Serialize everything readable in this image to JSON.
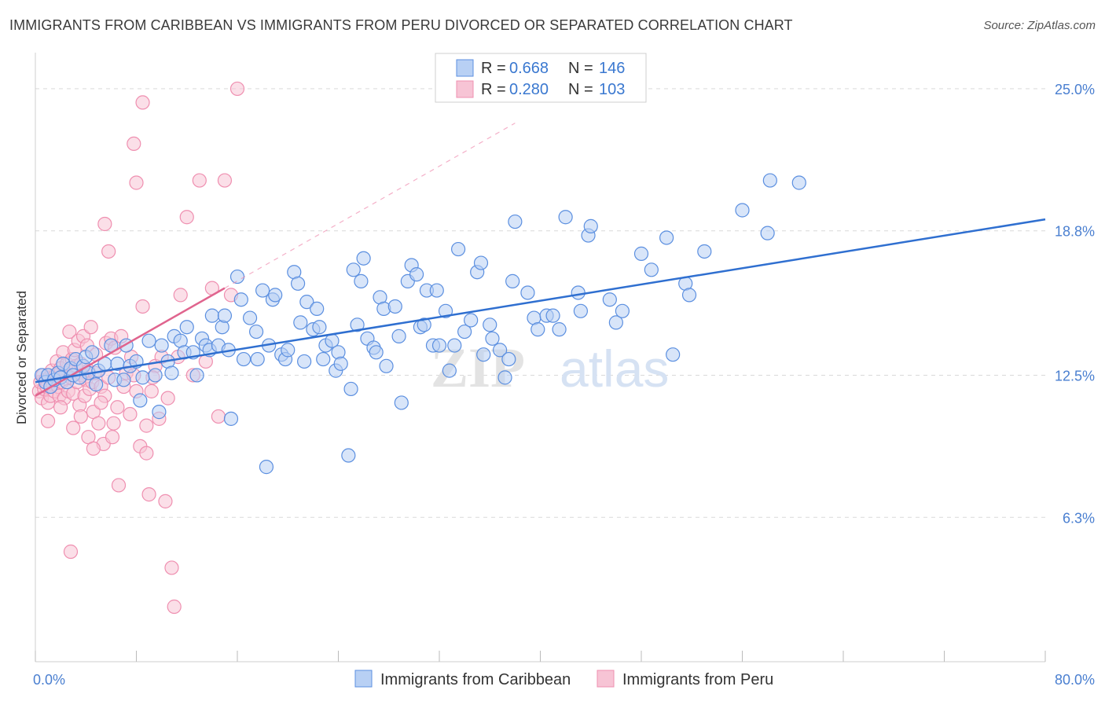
{
  "title": "IMMIGRANTS FROM CARIBBEAN VS IMMIGRANTS FROM PERU DIVORCED OR SEPARATED CORRELATION CHART",
  "source": "Source: ZipAtlas.com",
  "watermark": {
    "zip": "ZIP",
    "atlas": "atlas"
  },
  "colors": {
    "blue": "#5b8fe0",
    "blue_line": "#2f6fd0",
    "blue_fill": "#b8d0f4",
    "pink": "#ef8fb0",
    "pink_line": "#e0648e",
    "pink_fill": "#f7c4d5",
    "grid": "#d9d9d9",
    "tick_text": "#4a7fd0"
  },
  "legend_top": {
    "rows": [
      {
        "r_label": "R = ",
        "r_value": "0.668",
        "n_label": "N = ",
        "n_value": "146"
      },
      {
        "r_label": "R = ",
        "r_value": "0.280",
        "n_label": "N = ",
        "n_value": "103"
      }
    ]
  },
  "legend_bottom": [
    "Immigrants from Caribbean",
    "Immigrants from Peru"
  ],
  "chart_data": {
    "type": "scatter",
    "title": "IMMIGRANTS FROM CARIBBEAN VS IMMIGRANTS FROM PERU DIVORCED OR SEPARATED CORRELATION CHART",
    "xlabel": "",
    "ylabel": "Divorced or Separated",
    "xlim": [
      0,
      80
    ],
    "ylim": [
      0,
      26.3
    ],
    "x_tick_labels": [
      {
        "value": 0,
        "label": "0.0%"
      },
      {
        "value": 80,
        "label": "80.0%"
      }
    ],
    "y_tick_labels": [
      {
        "value": 25.0,
        "label": "25.0%"
      },
      {
        "value": 18.8,
        "label": "18.8%"
      },
      {
        "value": 12.5,
        "label": "12.5%"
      },
      {
        "value": 6.3,
        "label": "6.3%"
      }
    ],
    "grid": true,
    "legend_position": "top-center",
    "series": [
      {
        "name": "Immigrants from Caribbean",
        "R": 0.668,
        "N": 146,
        "trend": {
          "x": [
            0,
            80
          ],
          "y": [
            12.2,
            19.3
          ]
        },
        "points": [
          [
            0.5,
            12.5
          ],
          [
            0.8,
            12.2
          ],
          [
            1.0,
            12.5
          ],
          [
            1.2,
            12.0
          ],
          [
            1.5,
            12.3
          ],
          [
            1.8,
            12.6
          ],
          [
            2.0,
            12.4
          ],
          [
            2.2,
            13.0
          ],
          [
            2.5,
            12.2
          ],
          [
            2.8,
            12.8
          ],
          [
            3.0,
            12.5
          ],
          [
            3.2,
            13.2
          ],
          [
            3.5,
            12.4
          ],
          [
            3.8,
            12.9
          ],
          [
            4.0,
            13.3
          ],
          [
            4.2,
            12.6
          ],
          [
            4.5,
            13.5
          ],
          [
            4.8,
            12.1
          ],
          [
            5.0,
            12.7
          ],
          [
            5.5,
            13.0
          ],
          [
            6.0,
            13.8
          ],
          [
            6.3,
            12.3
          ],
          [
            6.5,
            13.0
          ],
          [
            7.0,
            12.3
          ],
          [
            7.2,
            13.8
          ],
          [
            7.5,
            12.9
          ],
          [
            8.0,
            13.1
          ],
          [
            8.3,
            11.4
          ],
          [
            8.5,
            12.4
          ],
          [
            9.0,
            14.0
          ],
          [
            9.5,
            12.5
          ],
          [
            9.8,
            10.9
          ],
          [
            10.0,
            13.8
          ],
          [
            10.5,
            13.1
          ],
          [
            10.8,
            12.6
          ],
          [
            11.0,
            14.2
          ],
          [
            11.5,
            14.0
          ],
          [
            11.8,
            13.5
          ],
          [
            12.0,
            14.6
          ],
          [
            12.5,
            13.5
          ],
          [
            12.8,
            12.5
          ],
          [
            13.2,
            14.1
          ],
          [
            13.5,
            13.8
          ],
          [
            13.8,
            13.6
          ],
          [
            14.0,
            15.1
          ],
          [
            14.5,
            13.8
          ],
          [
            14.8,
            14.6
          ],
          [
            15.0,
            15.1
          ],
          [
            15.3,
            13.6
          ],
          [
            15.5,
            10.6
          ],
          [
            16.0,
            16.8
          ],
          [
            16.3,
            15.8
          ],
          [
            16.5,
            13.2
          ],
          [
            17.0,
            15.0
          ],
          [
            17.5,
            14.4
          ],
          [
            17.6,
            13.2
          ],
          [
            18.0,
            16.2
          ],
          [
            18.3,
            8.5
          ],
          [
            18.5,
            13.8
          ],
          [
            18.8,
            15.8
          ],
          [
            19.0,
            16.0
          ],
          [
            19.5,
            13.4
          ],
          [
            19.8,
            13.2
          ],
          [
            20.0,
            13.6
          ],
          [
            20.5,
            17.0
          ],
          [
            20.8,
            16.5
          ],
          [
            21.0,
            14.8
          ],
          [
            21.3,
            13.1
          ],
          [
            21.5,
            15.7
          ],
          [
            22.0,
            14.5
          ],
          [
            22.3,
            15.4
          ],
          [
            22.5,
            14.6
          ],
          [
            22.8,
            13.2
          ],
          [
            23.0,
            13.8
          ],
          [
            23.5,
            14.0
          ],
          [
            23.8,
            12.7
          ],
          [
            24.0,
            13.5
          ],
          [
            24.2,
            13.0
          ],
          [
            24.8,
            9.0
          ],
          [
            25.0,
            11.9
          ],
          [
            25.2,
            17.1
          ],
          [
            25.5,
            14.7
          ],
          [
            25.8,
            16.6
          ],
          [
            26.0,
            17.6
          ],
          [
            26.3,
            14.1
          ],
          [
            26.8,
            13.7
          ],
          [
            27.0,
            13.5
          ],
          [
            27.3,
            15.9
          ],
          [
            27.6,
            15.4
          ],
          [
            27.8,
            12.9
          ],
          [
            28.5,
            15.5
          ],
          [
            28.8,
            14.2
          ],
          [
            29.0,
            11.3
          ],
          [
            29.5,
            16.6
          ],
          [
            29.8,
            17.3
          ],
          [
            30.2,
            16.9
          ],
          [
            30.5,
            14.6
          ],
          [
            30.8,
            14.7
          ],
          [
            31.0,
            16.2
          ],
          [
            31.5,
            13.8
          ],
          [
            31.8,
            16.2
          ],
          [
            32.0,
            13.8
          ],
          [
            32.5,
            15.3
          ],
          [
            32.8,
            12.7
          ],
          [
            33.2,
            13.8
          ],
          [
            33.5,
            18.0
          ],
          [
            34.0,
            14.4
          ],
          [
            34.5,
            14.9
          ],
          [
            35.0,
            17.0
          ],
          [
            35.3,
            17.4
          ],
          [
            35.5,
            13.4
          ],
          [
            36.0,
            14.7
          ],
          [
            36.2,
            14.1
          ],
          [
            36.8,
            13.6
          ],
          [
            37.2,
            12.4
          ],
          [
            37.5,
            13.2
          ],
          [
            37.8,
            16.6
          ],
          [
            38.0,
            19.2
          ],
          [
            39.0,
            16.1
          ],
          [
            39.5,
            15.0
          ],
          [
            39.8,
            14.5
          ],
          [
            40.5,
            15.1
          ],
          [
            41.0,
            15.1
          ],
          [
            41.5,
            14.5
          ],
          [
            42.0,
            19.4
          ],
          [
            43.0,
            16.1
          ],
          [
            43.2,
            15.3
          ],
          [
            43.8,
            18.6
          ],
          [
            44.0,
            19.0
          ],
          [
            45.5,
            15.8
          ],
          [
            46.0,
            14.8
          ],
          [
            46.5,
            15.3
          ],
          [
            48.0,
            17.8
          ],
          [
            48.8,
            17.1
          ],
          [
            50.0,
            18.5
          ],
          [
            50.5,
            13.4
          ],
          [
            51.5,
            16.5
          ],
          [
            51.8,
            16.0
          ],
          [
            53.0,
            17.9
          ],
          [
            56.0,
            19.7
          ],
          [
            58.0,
            18.7
          ],
          [
            58.2,
            21.0
          ],
          [
            60.5,
            20.9
          ]
        ]
      },
      {
        "name": "Immigrants from Peru",
        "R": 0.28,
        "N": 103,
        "trend": {
          "x": [
            0,
            15
          ],
          "y": [
            11.6,
            16.3
          ]
        },
        "trend_extension": {
          "x": [
            15,
            38
          ],
          "y": [
            16.3,
            23.5
          ]
        },
        "points": [
          [
            0.3,
            11.8
          ],
          [
            0.4,
            12.2
          ],
          [
            0.5,
            11.5
          ],
          [
            0.6,
            12.5
          ],
          [
            0.7,
            11.9
          ],
          [
            0.8,
            12.3
          ],
          [
            0.9,
            12.0
          ],
          [
            1.0,
            11.3
          ],
          [
            1.1,
            12.4
          ],
          [
            1.2,
            11.6
          ],
          [
            1.3,
            12.7
          ],
          [
            1.4,
            12.1
          ],
          [
            1.5,
            11.8
          ],
          [
            1.6,
            12.5
          ],
          [
            1.7,
            13.1
          ],
          [
            1.8,
            12.0
          ],
          [
            1.9,
            11.6
          ],
          [
            2.0,
            12.8
          ],
          [
            2.1,
            12.2
          ],
          [
            2.2,
            13.5
          ],
          [
            2.3,
            11.5
          ],
          [
            2.4,
            12.6
          ],
          [
            2.5,
            13.0
          ],
          [
            2.6,
            11.8
          ],
          [
            2.7,
            14.4
          ],
          [
            2.8,
            12.4
          ],
          [
            2.9,
            13.2
          ],
          [
            3.0,
            11.7
          ],
          [
            3.1,
            13.6
          ],
          [
            3.2,
            12.9
          ],
          [
            3.3,
            12.2
          ],
          [
            3.4,
            14.0
          ],
          [
            3.5,
            11.2
          ],
          [
            3.6,
            13.0
          ],
          [
            3.7,
            12.5
          ],
          [
            3.8,
            14.2
          ],
          [
            3.9,
            11.6
          ],
          [
            4.0,
            12.3
          ],
          [
            4.1,
            13.8
          ],
          [
            4.2,
            12.7
          ],
          [
            4.3,
            11.9
          ],
          [
            4.4,
            14.6
          ],
          [
            4.5,
            12.2
          ],
          [
            4.6,
            10.9
          ],
          [
            4.7,
            12.6
          ],
          [
            4.8,
            13.4
          ],
          [
            5.0,
            10.4
          ],
          [
            5.2,
            12.0
          ],
          [
            5.4,
            9.5
          ],
          [
            5.5,
            11.6
          ],
          [
            5.6,
            13.9
          ],
          [
            5.8,
            12.4
          ],
          [
            6.0,
            14.1
          ],
          [
            6.1,
            9.8
          ],
          [
            6.3,
            13.7
          ],
          [
            6.5,
            11.1
          ],
          [
            6.6,
            7.7
          ],
          [
            6.8,
            14.2
          ],
          [
            7.0,
            12.0
          ],
          [
            7.2,
            12.6
          ],
          [
            7.5,
            10.8
          ],
          [
            7.6,
            13.3
          ],
          [
            7.8,
            12.5
          ],
          [
            8.0,
            11.8
          ],
          [
            8.3,
            9.4
          ],
          [
            8.5,
            15.5
          ],
          [
            8.8,
            9.1
          ],
          [
            9.0,
            7.3
          ],
          [
            9.2,
            11.8
          ],
          [
            9.5,
            12.9
          ],
          [
            9.8,
            10.6
          ],
          [
            10.0,
            13.3
          ],
          [
            10.3,
            7.0
          ],
          [
            10.5,
            11.5
          ],
          [
            10.8,
            4.1
          ],
          [
            11.0,
            2.4
          ],
          [
            11.3,
            13.3
          ],
          [
            11.5,
            16.0
          ],
          [
            12.0,
            19.4
          ],
          [
            12.5,
            12.5
          ],
          [
            13.0,
            21.0
          ],
          [
            13.5,
            13.1
          ],
          [
            14.0,
            16.3
          ],
          [
            14.5,
            10.7
          ],
          [
            15.0,
            21.0
          ],
          [
            15.5,
            16.0
          ],
          [
            16.0,
            25.0
          ],
          [
            2.8,
            4.8
          ],
          [
            5.8,
            17.9
          ],
          [
            5.5,
            19.1
          ],
          [
            7.8,
            22.6
          ],
          [
            8.0,
            20.9
          ],
          [
            8.5,
            24.4
          ],
          [
            3.6,
            10.7
          ],
          [
            4.2,
            9.8
          ],
          [
            1.0,
            10.5
          ],
          [
            2.0,
            11.1
          ],
          [
            3.0,
            10.2
          ],
          [
            4.6,
            9.3
          ],
          [
            5.2,
            11.3
          ],
          [
            6.2,
            10.4
          ],
          [
            8.8,
            10.3
          ],
          [
            9.3,
            12.4
          ]
        ]
      }
    ]
  }
}
